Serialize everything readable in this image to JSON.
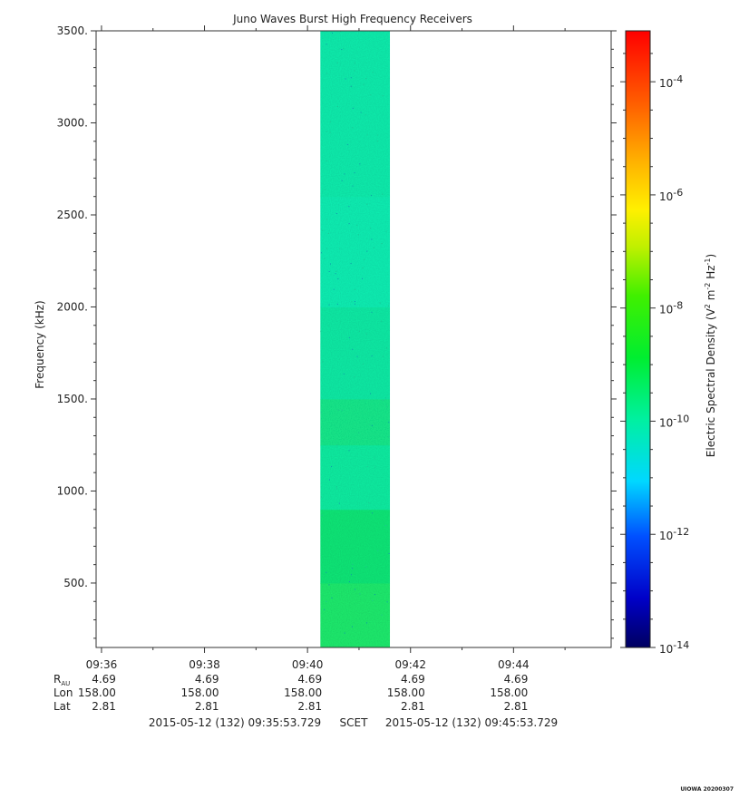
{
  "chart_data": {
    "type": "heatmap",
    "title": "Juno Waves Burst High Frequency Receivers",
    "ylabel": "Frequency (kHz)",
    "ylim": [
      150,
      3500
    ],
    "yticks": [
      "500.",
      "1000.",
      "1500.",
      "2000.",
      "2500.",
      "3000.",
      "3500."
    ],
    "ytick_values": [
      500,
      1000,
      1500,
      2000,
      2500,
      3000,
      3500
    ],
    "x_range": [
      "09:35:53.729",
      "09:45:53.729"
    ],
    "xticks": [
      "09:36",
      "09:38",
      "09:40",
      "09:42",
      "09:44"
    ],
    "xtick_minutes": [
      36,
      38,
      40,
      42,
      44
    ],
    "data_block": {
      "start": "09:40:15",
      "end": "09:41:36",
      "ylim": [
        150,
        3500
      ],
      "bands": [
        {
          "from": 150,
          "to": 500,
          "color": "#1ef06e"
        },
        {
          "from": 500,
          "to": 900,
          "color": "#12ec78"
        },
        {
          "from": 900,
          "to": 1250,
          "color": "#0ef2a2"
        },
        {
          "from": 1250,
          "to": 1500,
          "color": "#15ee8c"
        },
        {
          "from": 1500,
          "to": 2000,
          "color": "#0cf0a6"
        },
        {
          "from": 2000,
          "to": 2600,
          "color": "#0af4b4"
        },
        {
          "from": 2600,
          "to": 3500,
          "color": "#0cf2ae"
        }
      ]
    },
    "colorbar": {
      "label_main": "Electric Spectral Density (V",
      "label_sup1": "2",
      "label_mid": " m",
      "label_sup2": "-2",
      "label_mid2": " Hz",
      "label_sup3": "-1",
      "label_end": ")",
      "log_range": [
        -14,
        -3.1
      ],
      "tick_exponents": [
        -14,
        -12,
        -10,
        -8,
        -6,
        -4
      ],
      "tick_base": "10"
    },
    "ephemeris": {
      "rows": [
        {
          "label": "R",
          "sub": "AU",
          "values": [
            "4.69",
            "4.69",
            "4.69",
            "4.69",
            "4.69"
          ]
        },
        {
          "label": "Lon",
          "sub": "",
          "values": [
            "158.00",
            "158.00",
            "158.00",
            "158.00",
            "158.00"
          ]
        },
        {
          "label": "Lat",
          "sub": "",
          "values": [
            "2.81",
            "2.81",
            "2.81",
            "2.81",
            "2.81"
          ]
        }
      ]
    },
    "time_span": {
      "start": "2015-05-12 (132) 09:35:53.729",
      "mid": "SCET",
      "end": "2015-05-12 (132) 09:45:53.729"
    },
    "footer": "UIOWA 20200307"
  }
}
